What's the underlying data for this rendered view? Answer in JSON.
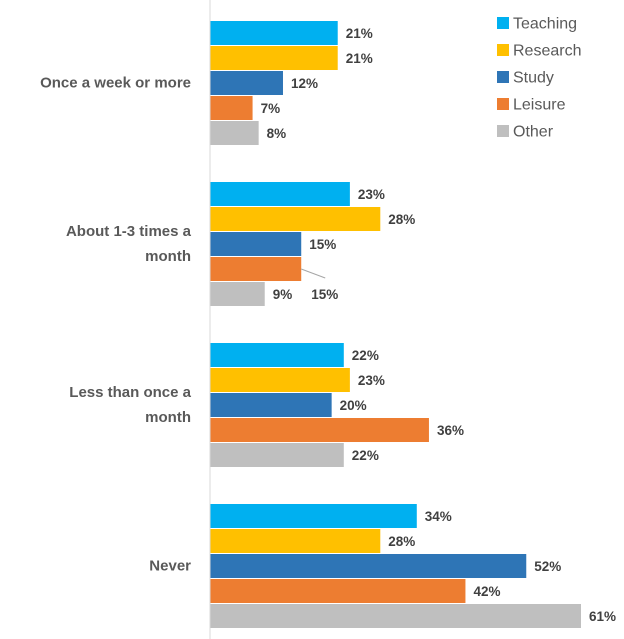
{
  "chart_data": {
    "type": "bar",
    "orientation": "horizontal",
    "categories": [
      [
        "Once a week or more"
      ],
      [
        "About 1-3 times a",
        "month"
      ],
      [
        "Less than once a",
        "month"
      ],
      [
        "Never"
      ]
    ],
    "series": [
      {
        "name": "Teaching",
        "color": "#00B0F0",
        "values": [
          21,
          23,
          22,
          34
        ]
      },
      {
        "name": "Research",
        "color": "#FFC000",
        "values": [
          21,
          28,
          23,
          28
        ]
      },
      {
        "name": "Study",
        "color": "#2E75B6",
        "values": [
          12,
          15,
          20,
          52
        ]
      },
      {
        "name": "Leisure",
        "color": "#ED7D31",
        "values": [
          7,
          15,
          36,
          42
        ]
      },
      {
        "name": "Other",
        "color": "#BFBFBF",
        "values": [
          8,
          9,
          22,
          61
        ]
      }
    ],
    "value_suffix": "%",
    "xlim": [
      0,
      61
    ],
    "grid": false,
    "legend_position": "top-right"
  }
}
